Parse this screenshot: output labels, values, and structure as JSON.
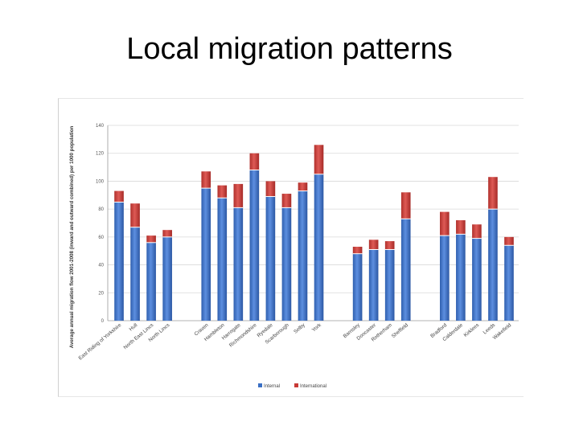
{
  "slide": {
    "title": "Local migration patterns"
  },
  "chart_data": {
    "type": "bar",
    "stacked": true,
    "title": "",
    "xlabel": "",
    "ylabel": "Average annual migration flow 2001-2008 (inward and outward combined) per 1000 population",
    "ylim": [
      0,
      140
    ],
    "yticks": [
      0,
      20,
      40,
      60,
      80,
      100,
      120,
      140
    ],
    "grid": true,
    "legend_position": "bottom",
    "groups": [
      [
        "East Riding of Yorkshire",
        "Hull",
        "North East Lincs",
        "North Lincs"
      ],
      [
        "Craven",
        "Hambleton",
        "Harrogate",
        "Richmondshire",
        "Ryedale",
        "Scarborough",
        "Selby",
        "York"
      ],
      [
        "Barnsley",
        "Doncaster",
        "Rotherham",
        "Sheffield"
      ],
      [
        "Bradford",
        "Calderdale",
        "Kirklees",
        "Leeds",
        "Wakefield"
      ]
    ],
    "categories": [
      "East Riding of Yorkshire",
      "Hull",
      "North East Lincs",
      "North Lincs",
      "Craven",
      "Hambleton",
      "Harrogate",
      "Richmondshire",
      "Ryedale",
      "Scarborough",
      "Selby",
      "York",
      "Barnsley",
      "Doncaster",
      "Rotherham",
      "Sheffield",
      "Bradford",
      "Calderdale",
      "Kirklees",
      "Leeds",
      "Wakefield"
    ],
    "series": [
      {
        "name": "Internal",
        "color": "#3a6fc4",
        "values": [
          85,
          67,
          56,
          60,
          95,
          88,
          81,
          108,
          89,
          81,
          93,
          105,
          48,
          51,
          51,
          73,
          61,
          62,
          59,
          80,
          54
        ]
      },
      {
        "name": "International",
        "color": "#c83a36",
        "values": [
          8,
          17,
          5,
          5,
          12,
          9,
          17,
          12,
          11,
          10,
          6,
          21,
          5,
          7,
          6,
          19,
          17,
          10,
          10,
          23,
          6
        ]
      }
    ]
  }
}
